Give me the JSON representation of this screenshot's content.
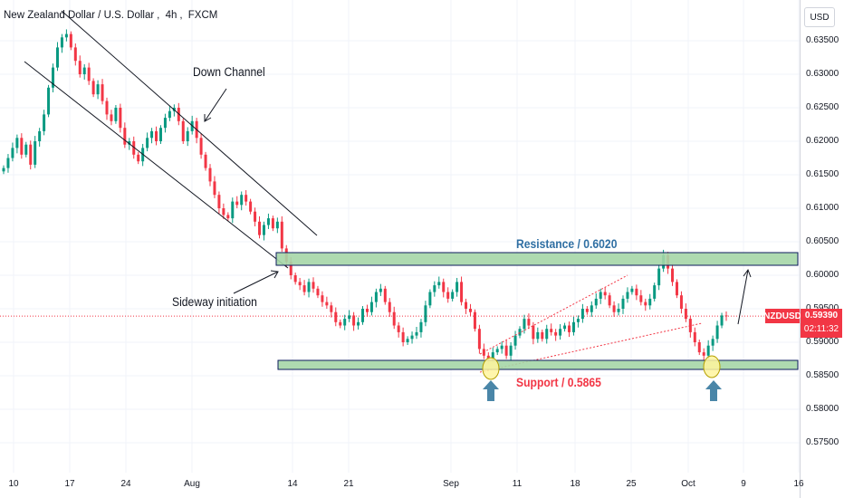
{
  "header": {
    "symbol_name": "New Zealand Dollar / U.S. Dollar",
    "interval": "4h",
    "exchange": "FXCM"
  },
  "price_axis": {
    "currency": "USD",
    "ticks": [
      "0.63500",
      "0.63000",
      "0.62500",
      "0.62000",
      "0.61500",
      "0.61000",
      "0.60500",
      "0.60000",
      "0.59500",
      "0.59000",
      "0.58500",
      "0.58000",
      "0.57500"
    ]
  },
  "time_axis": {
    "ticks": [
      "10",
      "17",
      "24",
      "Aug",
      "14",
      "21",
      "Sep",
      "11",
      "18",
      "25",
      "Oct",
      "9",
      "16"
    ]
  },
  "current_price": {
    "symbol": "NZDUSD",
    "price": "0.59390",
    "countdown": "02:11:32"
  },
  "annotations": {
    "down_channel": "Down Channel",
    "sideway": "Sideway initiation",
    "resistance": "Resistance / 0.6020",
    "support": "Support / 0.5865"
  },
  "colors": {
    "up_candle": "#089981",
    "down_candle": "#f23645",
    "zone_fill": "#a5d6a7",
    "zone_border": "#0d1b5e",
    "resistance_label": "#2f6fa3",
    "support_label": "#f23645",
    "arrow_marker": "#4a86a8",
    "highlight_circle": "#fff59d"
  },
  "chart_data": {
    "type": "candlestick",
    "symbol": "NZDUSD",
    "interval": "4h",
    "ylim": [
      0.5725,
      0.6395
    ],
    "resistance_zone": [
      0.6012,
      0.6032
    ],
    "support_zone": [
      0.5857,
      0.5872
    ],
    "last_price": 0.5939,
    "x_ticks": [
      "10",
      "17",
      "24",
      "Aug",
      "14",
      "21",
      "Sep",
      "11",
      "18",
      "25",
      "Oct",
      "9",
      "16"
    ],
    "closes": [
      0.616,
      0.6175,
      0.619,
      0.6205,
      0.618,
      0.6195,
      0.6165,
      0.62,
      0.6215,
      0.624,
      0.628,
      0.631,
      0.634,
      0.6355,
      0.636,
      0.634,
      0.632,
      0.63,
      0.631,
      0.629,
      0.627,
      0.6285,
      0.626,
      0.624,
      0.623,
      0.625,
      0.622,
      0.6195,
      0.62,
      0.618,
      0.617,
      0.619,
      0.6205,
      0.6215,
      0.62,
      0.622,
      0.6235,
      0.6245,
      0.625,
      0.623,
      0.62,
      0.6215,
      0.623,
      0.6205,
      0.618,
      0.616,
      0.614,
      0.612,
      0.61,
      0.609,
      0.6085,
      0.611,
      0.6105,
      0.612,
      0.611,
      0.6095,
      0.608,
      0.606,
      0.6075,
      0.6085,
      0.607,
      0.608,
      0.604,
      0.602,
      0.6,
      0.599,
      0.5985,
      0.5975,
      0.599,
      0.598,
      0.597,
      0.596,
      0.5955,
      0.5945,
      0.593,
      0.5925,
      0.5935,
      0.594,
      0.5925,
      0.593,
      0.595,
      0.5945,
      0.596,
      0.5975,
      0.598,
      0.596,
      0.5945,
      0.5925,
      0.5915,
      0.59,
      0.5905,
      0.591,
      0.5915,
      0.593,
      0.5955,
      0.5975,
      0.5985,
      0.599,
      0.5975,
      0.5965,
      0.5975,
      0.599,
      0.596,
      0.595,
      0.5945,
      0.592,
      0.589,
      0.588,
      0.5875,
      0.5885,
      0.589,
      0.5895,
      0.588,
      0.5895,
      0.591,
      0.592,
      0.5935,
      0.5925,
      0.5905,
      0.5915,
      0.5905,
      0.592,
      0.5915,
      0.591,
      0.592,
      0.5925,
      0.5915,
      0.593,
      0.5935,
      0.595,
      0.5945,
      0.5955,
      0.5965,
      0.5975,
      0.597,
      0.5955,
      0.5945,
      0.595,
      0.5965,
      0.5975,
      0.598,
      0.597,
      0.596,
      0.5955,
      0.5965,
      0.5985,
      0.601,
      0.603,
      0.601,
      0.599,
      0.597,
      0.595,
      0.5935,
      0.5915,
      0.59,
      0.5885,
      0.588,
      0.5895,
      0.5905,
      0.5925,
      0.594,
      0.5939
    ]
  }
}
